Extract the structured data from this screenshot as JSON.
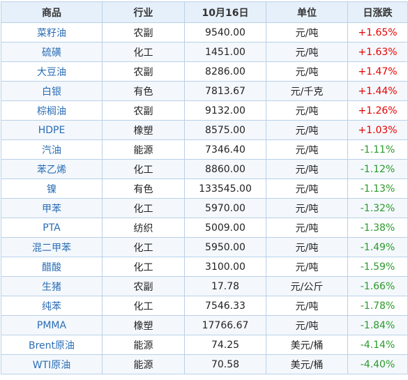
{
  "table": {
    "headers": [
      "商品",
      "行业",
      "10月16日",
      "单位",
      "日涨跌"
    ],
    "rows": [
      {
        "name": "菜籽油",
        "industry": "农副",
        "price": "9540.00",
        "unit": "元/吨",
        "change": "+1.65%",
        "dir": "up"
      },
      {
        "name": "硫磺",
        "industry": "化工",
        "price": "1451.00",
        "unit": "元/吨",
        "change": "+1.63%",
        "dir": "up"
      },
      {
        "name": "大豆油",
        "industry": "农副",
        "price": "8286.00",
        "unit": "元/吨",
        "change": "+1.47%",
        "dir": "up"
      },
      {
        "name": "白银",
        "industry": "有色",
        "price": "7813.67",
        "unit": "元/千克",
        "change": "+1.44%",
        "dir": "up"
      },
      {
        "name": "棕榈油",
        "industry": "农副",
        "price": "9132.00",
        "unit": "元/吨",
        "change": "+1.26%",
        "dir": "up"
      },
      {
        "name": "HDPE",
        "industry": "橡塑",
        "price": "8575.00",
        "unit": "元/吨",
        "change": "+1.03%",
        "dir": "up"
      },
      {
        "name": "汽油",
        "industry": "能源",
        "price": "7346.40",
        "unit": "元/吨",
        "change": "-1.11%",
        "dir": "down"
      },
      {
        "name": "苯乙烯",
        "industry": "化工",
        "price": "8860.00",
        "unit": "元/吨",
        "change": "-1.12%",
        "dir": "down"
      },
      {
        "name": "镍",
        "industry": "有色",
        "price": "133545.00",
        "unit": "元/吨",
        "change": "-1.13%",
        "dir": "down"
      },
      {
        "name": "甲苯",
        "industry": "化工",
        "price": "5970.00",
        "unit": "元/吨",
        "change": "-1.32%",
        "dir": "down"
      },
      {
        "name": "PTA",
        "industry": "纺织",
        "price": "5009.00",
        "unit": "元/吨",
        "change": "-1.38%",
        "dir": "down"
      },
      {
        "name": "混二甲苯",
        "industry": "化工",
        "price": "5950.00",
        "unit": "元/吨",
        "change": "-1.49%",
        "dir": "down"
      },
      {
        "name": "醋酸",
        "industry": "化工",
        "price": "3100.00",
        "unit": "元/吨",
        "change": "-1.59%",
        "dir": "down"
      },
      {
        "name": "生猪",
        "industry": "农副",
        "price": "17.78",
        "unit": "元/公斤",
        "change": "-1.66%",
        "dir": "down"
      },
      {
        "name": "纯苯",
        "industry": "化工",
        "price": "7546.33",
        "unit": "元/吨",
        "change": "-1.78%",
        "dir": "down"
      },
      {
        "name": "PMMA",
        "industry": "橡塑",
        "price": "17766.67",
        "unit": "元/吨",
        "change": "-1.84%",
        "dir": "down"
      },
      {
        "name": "Brent原油",
        "industry": "能源",
        "price": "74.25",
        "unit": "美元/桶",
        "change": "-4.14%",
        "dir": "down"
      },
      {
        "name": "WTI原油",
        "industry": "能源",
        "price": "70.58",
        "unit": "美元/桶",
        "change": "-4.40%",
        "dir": "down"
      }
    ]
  },
  "colors": {
    "name_link": "#2a6db5",
    "up": "#e60000",
    "down": "#2a9a2a",
    "header_bg": "#e6f0fa",
    "border": "#b9d0e8"
  }
}
